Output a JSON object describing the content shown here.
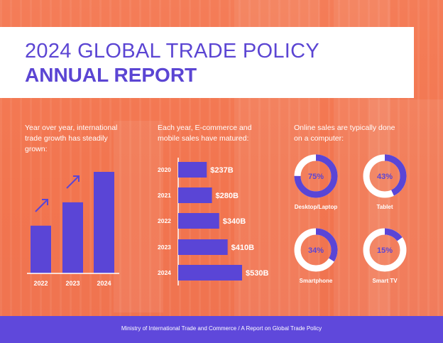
{
  "header": {
    "title_line1": "2024 GLOBAL TRADE POLICY",
    "title_line2": "ANNUAL REPORT"
  },
  "sections": {
    "growth_desc": "Year over year, international trade growth has steadily grown:",
    "sales_desc": "Each year, E-commerce and mobile sales have matured:",
    "online_desc": "Online sales are typically done on a computer:"
  },
  "footer": {
    "text": "Ministry of International Trade and Commerce  /  A Report on Global Trade Policy"
  },
  "colors": {
    "background": "#f47a55",
    "accent": "#5b45d3",
    "bar": "#5a45d6",
    "ring_track": "#ffffff"
  },
  "icons": [
    "arrow-up-right-icon",
    "arrow-up-right-icon"
  ],
  "chart_data": [
    {
      "type": "bar",
      "categories": [
        "2022",
        "2023",
        "2024"
      ],
      "values": [
        47,
        70,
        100
      ],
      "title": "",
      "xlabel": "",
      "ylabel": "",
      "ylim": [
        0,
        100
      ],
      "grid": false
    },
    {
      "type": "bar",
      "orientation": "horizontal",
      "categories": [
        "2020",
        "2021",
        "2022",
        "2023",
        "2024"
      ],
      "values": [
        237,
        280,
        340,
        410,
        530
      ],
      "labels": [
        "$237B",
        "$280B",
        "$340B",
        "$410B",
        "$530B"
      ],
      "title": "",
      "xlabel": "",
      "ylabel": ""
    },
    {
      "type": "pie",
      "style": "donut",
      "items": [
        {
          "name": "Desktop/Laptop",
          "value": 75,
          "label": "75%"
        },
        {
          "name": "Tablet",
          "value": 43,
          "label": "43%"
        },
        {
          "name": "Smartphone",
          "value": 34,
          "label": "34%"
        },
        {
          "name": "Smart TV",
          "value": 15,
          "label": "15%"
        }
      ]
    }
  ]
}
